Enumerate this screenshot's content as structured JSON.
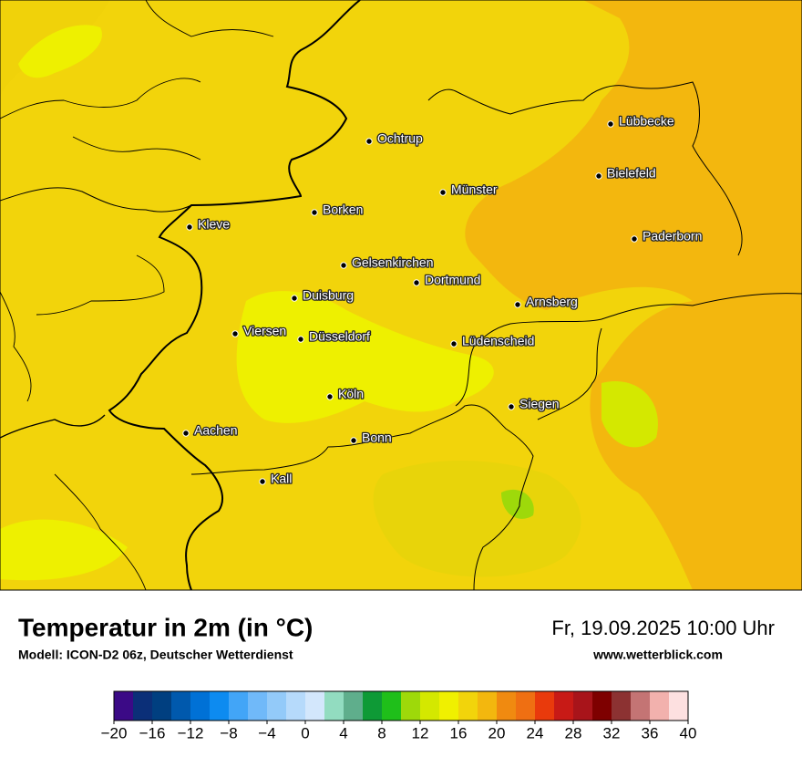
{
  "map": {
    "title": "Temperatur in 2m (in °C)",
    "model": "Modell: ICON-D2 06z, Deutscher Wetterdienst",
    "datetime": "Fr, 19.09.2025 10:00 Uhr",
    "website": "www.wetterblick.com",
    "cities": [
      "Lübbecke",
      "Ochtrup",
      "Bielefeld",
      "Münster",
      "Borken",
      "Kleve",
      "Paderborn",
      "Gelsenkirchen",
      "Dortmund",
      "Duisburg",
      "Arnsberg",
      "Viersen",
      "Düsseldorf",
      "Lüdenscheid",
      "Köln",
      "Siegen",
      "Aachen",
      "Bonn",
      "Kall"
    ],
    "colorbar": {
      "range": [
        -20,
        40
      ],
      "ticks": [
        {
          "value": -20,
          "label": "−20"
        },
        {
          "value": -16,
          "label": "−16"
        },
        {
          "value": -12,
          "label": "−12"
        },
        {
          "value": -8,
          "label": "−8"
        },
        {
          "value": -4,
          "label": "−4"
        },
        0,
        4,
        8,
        12,
        16,
        20,
        24,
        28,
        32,
        36,
        40
      ],
      "colors": [
        "#3b0a86",
        "#0b2f78",
        "#003f80",
        "#0059ad",
        "#0071d6",
        "#0d8bf0",
        "#42a5f7",
        "#70b9f9",
        "#93caf9",
        "#b6dafb",
        "#d3e7fc",
        "#92dcc0",
        "#5fae8c",
        "#0e9a36",
        "#1fbf1a",
        "#9ed90a",
        "#d4e800",
        "#f0f000",
        "#f2d40b",
        "#f3b70e",
        "#f08a10",
        "#ef6f12",
        "#e93a0c",
        "#c81a16",
        "#a8141a",
        "#7e0000",
        "#8c3232",
        "#c47474",
        "#f2b1ad",
        "#fde0e0"
      ]
    }
  }
}
